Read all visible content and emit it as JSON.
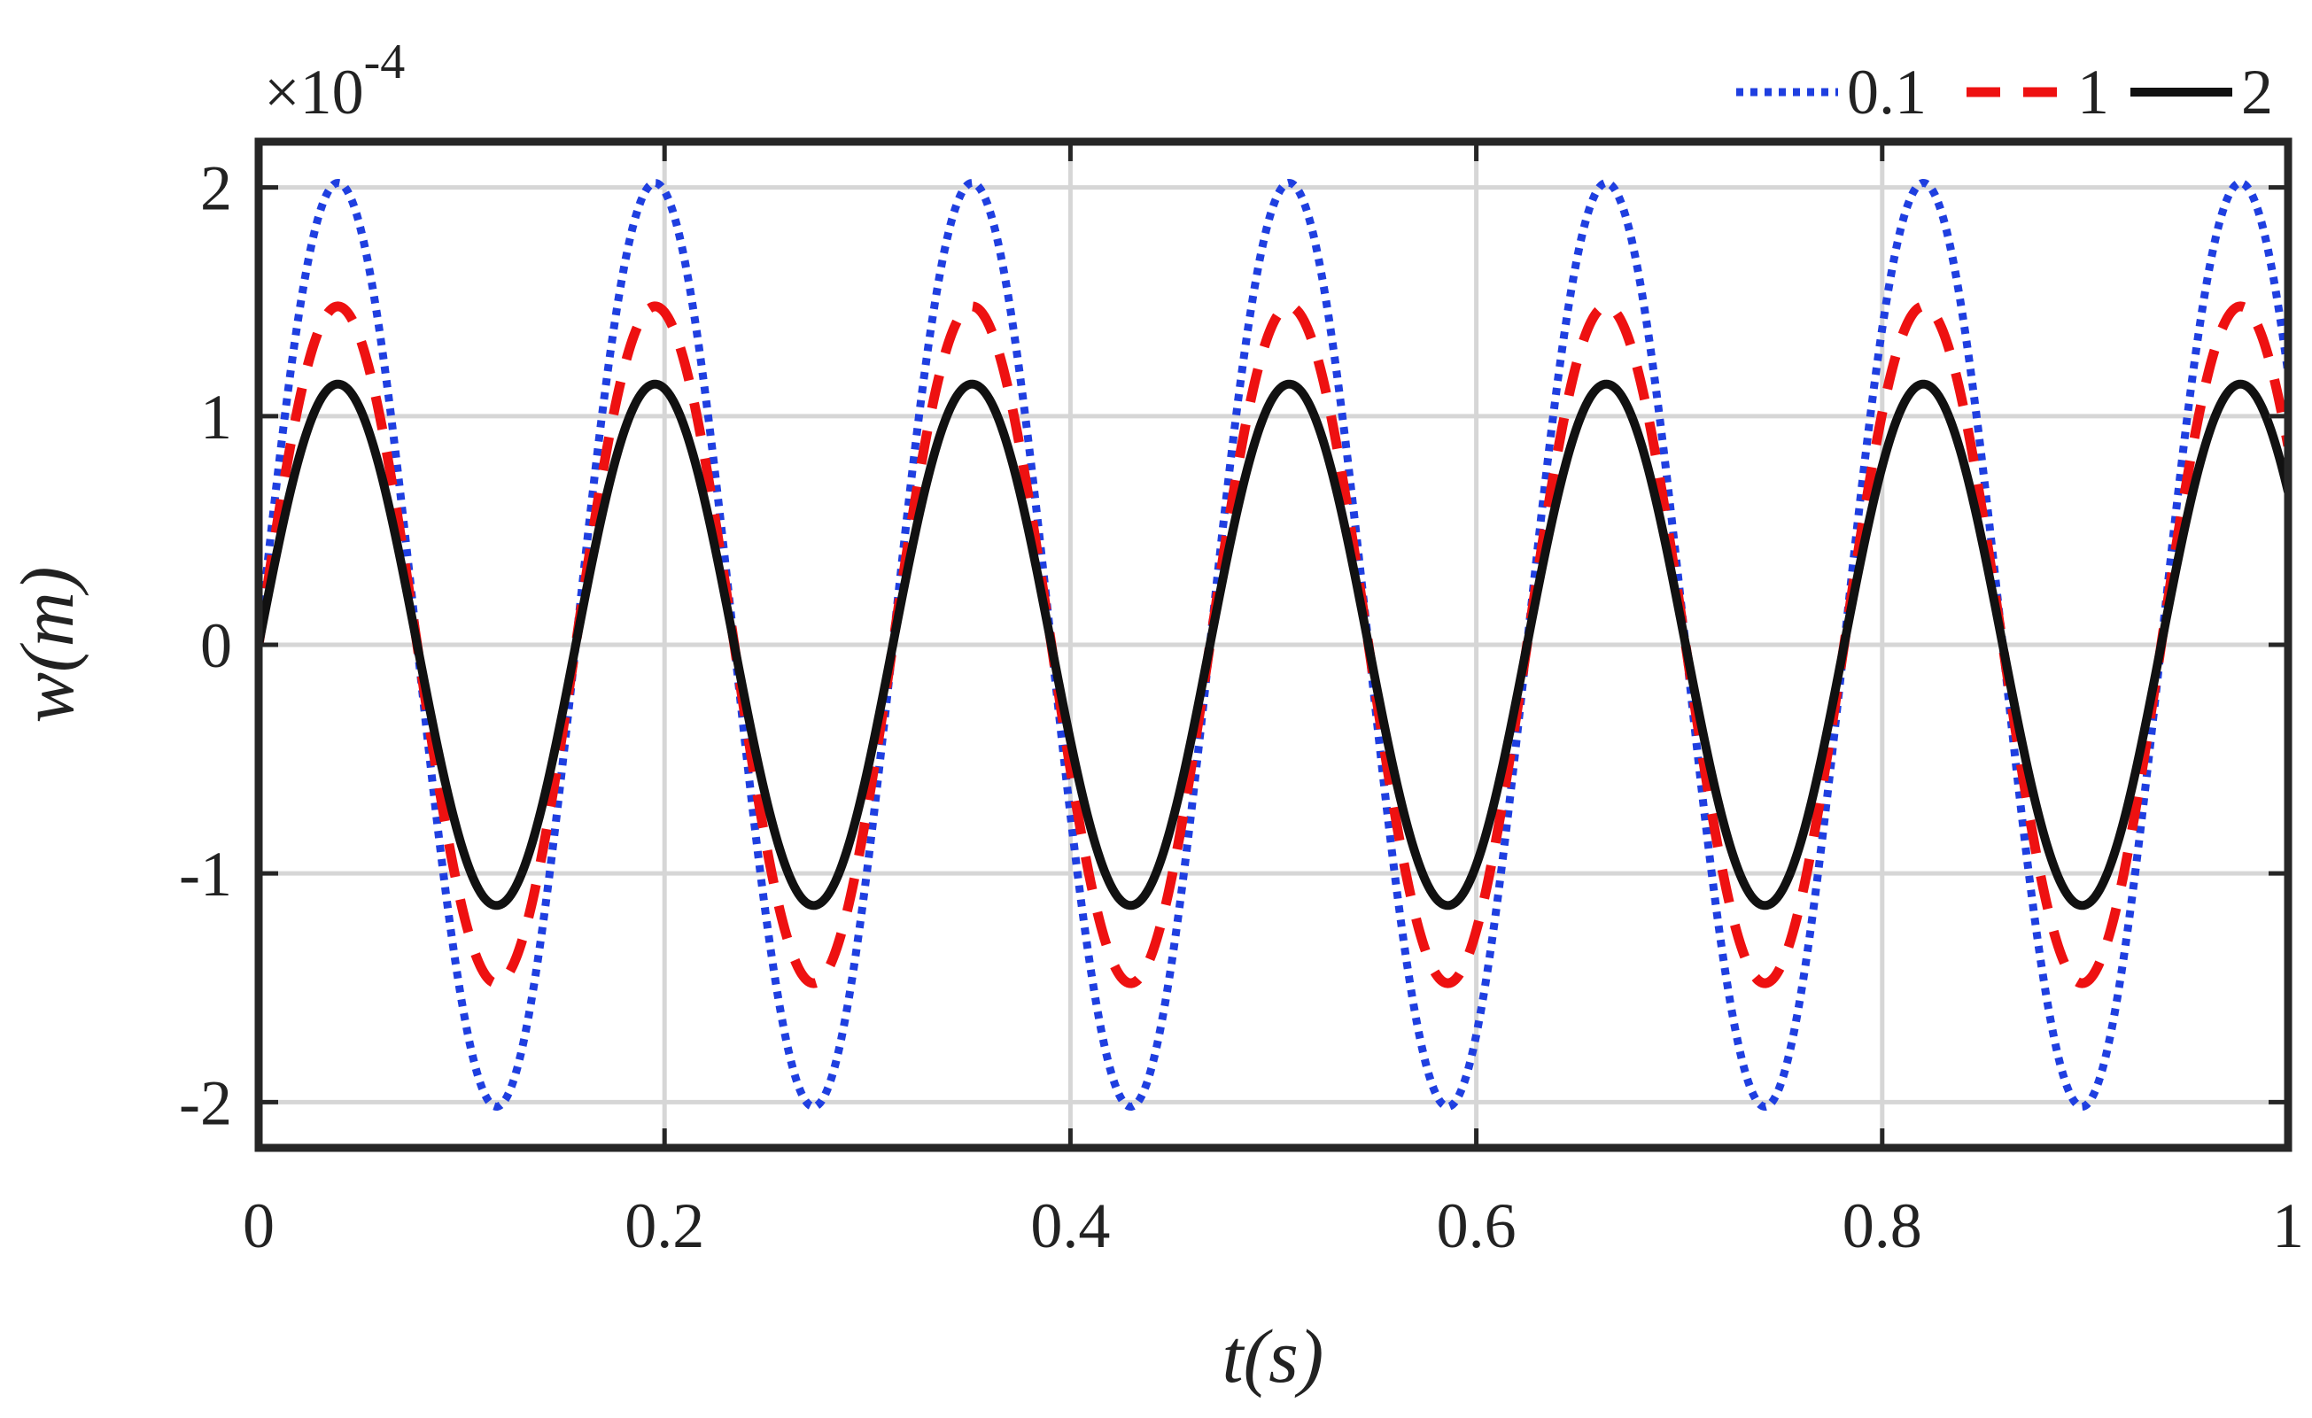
{
  "chart_data": {
    "type": "line",
    "title": "",
    "xlabel": "t(s)",
    "ylabel": "w(m)",
    "y_multiplier": "×10",
    "y_multiplier_exponent": "-4",
    "xlim": [
      0,
      1
    ],
    "ylim": [
      -2.2,
      2.2
    ],
    "grid": true,
    "legend_position": "top-right, outside above axes",
    "xticks": [
      0,
      0.2,
      0.4,
      0.6,
      0.8,
      1
    ],
    "xtick_labels": [
      "0",
      "0.2",
      "0.4",
      "0.6",
      "0.8",
      "1"
    ],
    "yticks": [
      -2,
      -1,
      0,
      1,
      2
    ],
    "ytick_labels": [
      "-2",
      "-1",
      "0",
      "1",
      "2"
    ],
    "frequency_hz": 6.4,
    "series": [
      {
        "name": "0.1",
        "amplitude": 2.02,
        "color": "#1f3fe0",
        "style": "dotted"
      },
      {
        "name": "1",
        "amplitude": 1.48,
        "color": "#ee1111",
        "style": "dashed"
      },
      {
        "name": "2",
        "amplitude": 1.14,
        "color": "#111111",
        "style": "solid"
      }
    ]
  }
}
